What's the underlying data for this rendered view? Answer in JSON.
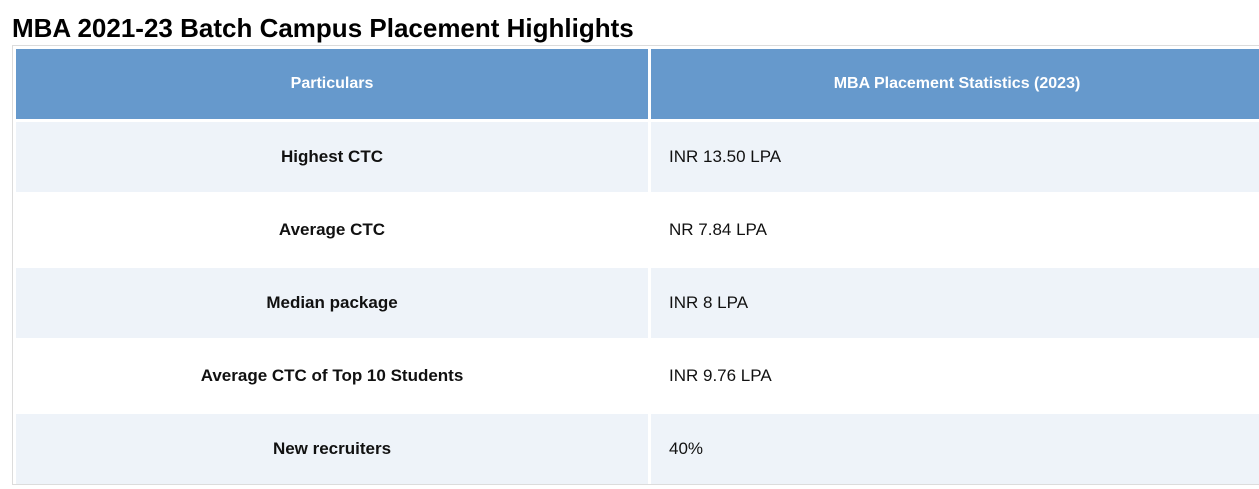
{
  "page": {
    "title": "MBA 2021-23 Batch Campus Placement Highlights"
  },
  "table": {
    "headers": [
      "Particulars",
      "MBA Placement Statistics (2023)"
    ],
    "rows": [
      {
        "particular": "Highest CTC",
        "value": "INR 13.50 LPA"
      },
      {
        "particular": "Average CTC",
        "value": "NR 7.84 LPA"
      },
      {
        "particular": "Median package",
        "value": "INR 8 LPA"
      },
      {
        "particular": "Average CTC of Top 10 Students",
        "value": "INR 9.76 LPA"
      },
      {
        "particular": "New recruiters",
        "value": "40%"
      }
    ],
    "colors": {
      "header_bg": "#6699cc",
      "header_text": "#ffffff",
      "stripe_bg": "#eef3f9",
      "row_bg": "#ffffff"
    }
  }
}
